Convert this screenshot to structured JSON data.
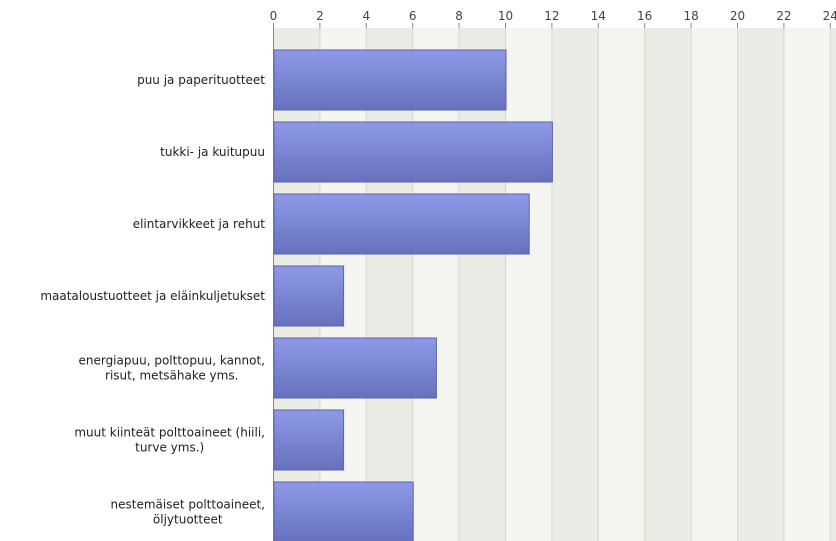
{
  "chart_data": {
    "type": "bar",
    "orientation": "horizontal",
    "categories": [
      [
        "puu ja paperituotteet"
      ],
      [
        "tukki- ja kuitupuu"
      ],
      [
        "elintarvikkeet ja rehut"
      ],
      [
        "maataloustuotteet ja eläinkuljetukset"
      ],
      [
        "energiapuu, polttopuu, kannot,",
        "risut, metsähake yms."
      ],
      [
        "muut kiinteät polttoaineet (hiili,",
        "turve yms.)"
      ],
      [
        "nestemäiset polttoaineet,",
        "öljytuotteet"
      ]
    ],
    "values": [
      10,
      12,
      11,
      3,
      7,
      3,
      6
    ],
    "xticks": [
      "0",
      "2",
      "4",
      "6",
      "8",
      "10",
      "12",
      "14",
      "16",
      "18",
      "20",
      "22",
      "24"
    ],
    "xlim": [
      0,
      24
    ],
    "axis_position": "top",
    "grid": true,
    "colors": {
      "bar_top": "#8f9ae6",
      "bar_bottom": "#6670bd",
      "bar_stroke": "#5b63aa",
      "band_light": "#f4f5f1",
      "band_dark": "#e9ebe4",
      "grid": "#d6d8d0",
      "axis": "#888888"
    }
  }
}
